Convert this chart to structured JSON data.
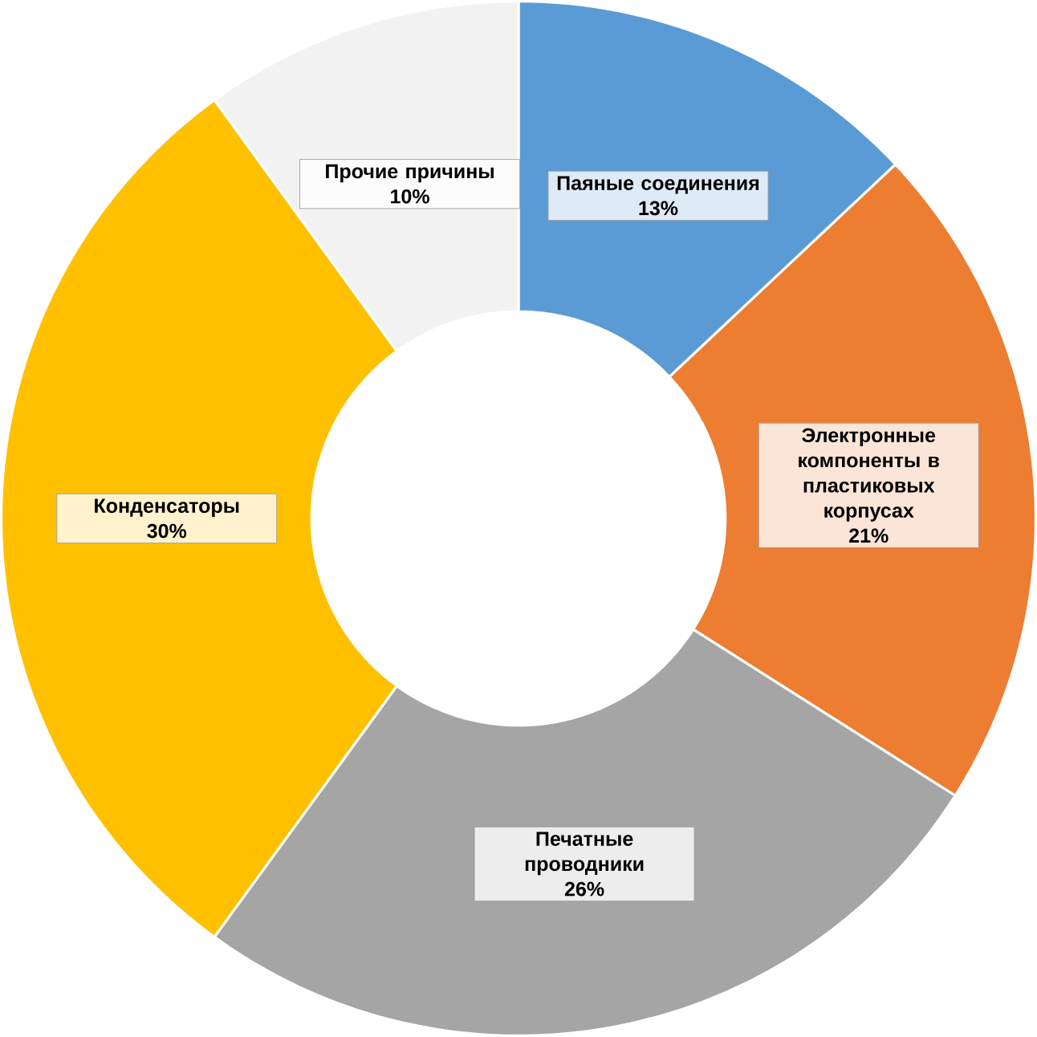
{
  "chart_data": {
    "type": "donut",
    "categories": [
      "Паяные соединения",
      "Электронные компоненты в пластиковых корпусах",
      "Печатные проводники",
      "Конденсаторы",
      "Прочие причины"
    ],
    "values": [
      13,
      21,
      26,
      30,
      10
    ],
    "value_labels": [
      "13%",
      "21%",
      "26%",
      "30%",
      "10%"
    ],
    "colors": [
      "#5b9bd5",
      "#ed7d31",
      "#a5a5a5",
      "#ffc000",
      "#f2f2f2"
    ]
  }
}
